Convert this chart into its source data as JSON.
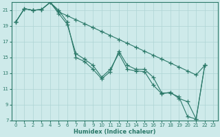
{
  "xlabel": "Humidex (Indice chaleur)",
  "ylabel": "",
  "background_color": "#ceeaea",
  "grid_color": "#aed4d4",
  "line_color": "#2a7868",
  "xlim": [
    -0.5,
    23.5
  ],
  "ylim": [
    7,
    22
  ],
  "yticks": [
    7,
    9,
    11,
    13,
    15,
    17,
    19,
    21
  ],
  "xticks": [
    0,
    1,
    2,
    3,
    4,
    5,
    6,
    7,
    8,
    9,
    10,
    11,
    12,
    13,
    14,
    15,
    16,
    17,
    18,
    19,
    20,
    21,
    22,
    23
  ],
  "lines": [
    {
      "x": [
        0,
        1,
        2,
        3,
        4,
        5,
        6,
        7,
        8,
        9,
        10,
        11,
        12,
        13,
        14,
        15,
        16,
        17,
        18,
        19,
        20,
        21,
        22
      ],
      "y": [
        19.5,
        21.2,
        21.0,
        21.1,
        22.0,
        20.8,
        20.3,
        19.8,
        19.3,
        18.8,
        18.3,
        17.8,
        17.3,
        16.8,
        16.3,
        15.8,
        15.3,
        14.8,
        14.3,
        13.8,
        13.3,
        12.8,
        14.0
      ]
    },
    {
      "x": [
        0,
        1,
        2,
        3,
        4,
        5,
        6,
        7,
        8,
        9,
        10,
        11,
        12,
        13,
        14,
        15,
        16,
        17,
        18,
        19,
        20,
        21,
        22
      ],
      "y": [
        19.5,
        21.2,
        21.0,
        21.1,
        22.0,
        21.0,
        19.5,
        15.0,
        14.5,
        13.5,
        12.3,
        13.2,
        15.8,
        14.0,
        13.5,
        13.5,
        12.5,
        10.5,
        10.5,
        10.0,
        7.5,
        7.2,
        14.0
      ]
    },
    {
      "x": [
        0,
        1,
        2,
        3,
        4,
        5,
        6,
        7,
        8,
        9,
        10,
        11,
        12,
        13,
        14,
        15,
        16,
        17,
        18,
        19,
        20,
        21,
        22
      ],
      "y": [
        19.5,
        21.2,
        21.0,
        21.1,
        22.0,
        20.6,
        19.2,
        15.5,
        14.8,
        14.0,
        12.5,
        13.5,
        15.5,
        13.5,
        13.3,
        13.2,
        11.5,
        10.4,
        10.6,
        9.8,
        9.4,
        7.2,
        14.0
      ]
    }
  ]
}
